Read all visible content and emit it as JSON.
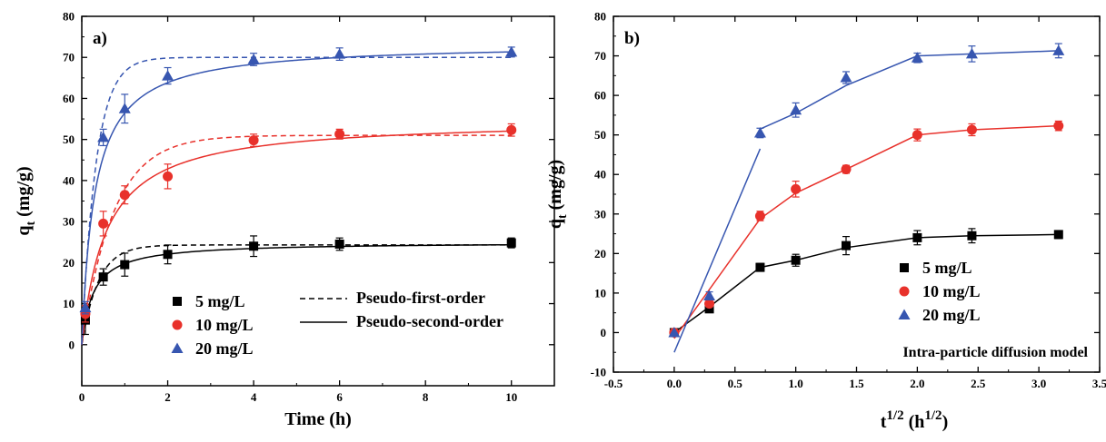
{
  "colors": {
    "black": "#000000",
    "red": "#e8312b",
    "blue": "#3756b0"
  },
  "chart_data": [
    {
      "type": "scatter",
      "panel_label": "a)",
      "xlabel": "Time (h)",
      "ylabel_main": "q",
      "ylabel_sub": "t",
      "ylabel_unit": " (mg/g)",
      "xlim": [
        0,
        11
      ],
      "ylim": [
        -10,
        80
      ],
      "xticks": [
        0,
        2,
        4,
        6,
        8,
        10
      ],
      "yticks": [
        0,
        10,
        20,
        30,
        40,
        50,
        60,
        70,
        80
      ],
      "series": [
        {
          "name": "5   mg/L",
          "marker": "square",
          "color": "#000000",
          "x": [
            0.083,
            0.5,
            1,
            2,
            4,
            6,
            10
          ],
          "y": [
            6.0,
            16.5,
            19.5,
            22.0,
            24.0,
            24.5,
            24.8
          ],
          "err": [
            3.5,
            2.0,
            2.8,
            2.3,
            2.5,
            1.5,
            1.2
          ]
        },
        {
          "name": "10 mg/L",
          "marker": "circle",
          "color": "#e8312b",
          "x": [
            0.083,
            0.5,
            1,
            2,
            4,
            6,
            10
          ],
          "y": [
            7.5,
            29.5,
            36.5,
            41.0,
            49.8,
            51.3,
            52.3
          ],
          "err": [
            2.0,
            3.0,
            2.2,
            3.0,
            1.5,
            1.2,
            1.5
          ]
        },
        {
          "name": "20 mg/L",
          "marker": "triangle",
          "color": "#3756b0",
          "x": [
            0.083,
            0.5,
            1,
            2,
            4,
            6,
            10
          ],
          "y": [
            9.0,
            50.5,
            57.5,
            65.5,
            69.5,
            70.8,
            71.3
          ],
          "err": [
            1.5,
            2.0,
            3.5,
            2.0,
            1.5,
            1.5,
            1.2
          ]
        }
      ],
      "models": {
        "pfo_label": "Pseudo-first-order",
        "pso_label": "Pseudo-second-order",
        "pfo": [
          {
            "color": "#000000",
            "qe": 24.3,
            "k": 2.6
          },
          {
            "color": "#e8312b",
            "qe": 51.0,
            "k": 1.35
          },
          {
            "color": "#3756b0",
            "qe": 70.0,
            "k": 3.0
          }
        ],
        "pso": [
          {
            "color": "#000000",
            "qe": 25.0,
            "k": 0.15
          },
          {
            "color": "#e8312b",
            "qe": 55.0,
            "k": 0.032
          },
          {
            "color": "#3756b0",
            "qe": 73.5,
            "k": 0.045
          }
        ]
      },
      "legend_position": "bottom-center"
    },
    {
      "type": "scatter",
      "panel_label": "b)",
      "xlabel_main": "t",
      "xlabel_sup": "1/2",
      "xlabel_paren": " (h",
      "xlabel_paren_sup": "1/2",
      "xlabel_close": ")",
      "ylabel_main": "q",
      "ylabel_sub": "t",
      "ylabel_unit": " (mg/g)",
      "xlim": [
        -0.5,
        3.5
      ],
      "ylim": [
        -10,
        80
      ],
      "xticks": [
        -0.5,
        0.0,
        0.5,
        1.0,
        1.5,
        2.0,
        2.5,
        3.0,
        3.5
      ],
      "xtick_labels": [
        "-0.5",
        "0.0",
        "0.5",
        "1.0",
        "1.5",
        "2.0",
        "2.5",
        "3.0",
        "3.5"
      ],
      "yticks": [
        -10,
        0,
        10,
        20,
        30,
        40,
        50,
        60,
        70,
        80
      ],
      "series": [
        {
          "name": "5   mg/L",
          "marker": "square",
          "color": "#000000",
          "x": [
            0,
            0.289,
            0.707,
            1.0,
            1.414,
            2.0,
            2.449,
            3.162
          ],
          "y": [
            0,
            6.0,
            16.5,
            18.3,
            22.0,
            24.0,
            24.5,
            24.8
          ],
          "err": [
            0,
            0.8,
            1.0,
            1.5,
            2.3,
            1.8,
            1.8,
            1.0
          ]
        },
        {
          "name": "10 mg/L",
          "marker": "circle",
          "color": "#e8312b",
          "x": [
            0,
            0.289,
            0.707,
            1.0,
            1.414,
            2.0,
            2.449,
            3.162
          ],
          "y": [
            0,
            7.3,
            29.5,
            36.3,
            41.3,
            50.0,
            51.3,
            52.3
          ],
          "err": [
            0,
            0.8,
            1.2,
            2.0,
            1.0,
            1.5,
            1.5,
            1.2
          ]
        },
        {
          "name": "20 mg/L",
          "marker": "triangle",
          "color": "#3756b0",
          "x": [
            0,
            0.289,
            0.707,
            1.0,
            1.414,
            2.0,
            2.449,
            3.162
          ],
          "y": [
            0,
            9.3,
            50.5,
            56.3,
            64.5,
            69.5,
            70.5,
            71.3
          ],
          "err": [
            0,
            1.0,
            1.2,
            1.8,
            1.5,
            1.2,
            2.0,
            1.8
          ]
        }
      ],
      "fit_lines": [
        {
          "color": "#000000",
          "points": [
            [
              0,
              0
            ],
            [
              0.289,
              6.5
            ],
            [
              0.707,
              16.5
            ],
            [
              1.0,
              18.3
            ],
            [
              1.414,
              21.5
            ],
            [
              2.0,
              24.0
            ],
            [
              2.449,
              24.5
            ],
            [
              3.162,
              24.8
            ]
          ]
        },
        {
          "color": "#e8312b",
          "points": [
            [
              0,
              -1.5
            ],
            [
              0.707,
              28.8
            ],
            [
              1.0,
              35.3
            ],
            [
              1.414,
              41.3
            ],
            [
              2.0,
              50.0
            ],
            [
              2.449,
              51.3
            ],
            [
              3.162,
              52.3
            ]
          ]
        },
        {
          "color": "#3756b0",
          "points": [
            [
              0,
              -5
            ],
            [
              0.707,
              46.5
            ]
          ]
        },
        {
          "color": "#3756b0",
          "points": [
            [
              0.707,
              51.5
            ],
            [
              1.0,
              55.5
            ],
            [
              1.414,
              62.5
            ],
            [
              2.0,
              70.0
            ],
            [
              2.449,
              70.5
            ],
            [
              3.162,
              71.3
            ]
          ]
        }
      ],
      "annotation": "Intra-particle diffusion model",
      "legend_position": "bottom-right"
    }
  ]
}
